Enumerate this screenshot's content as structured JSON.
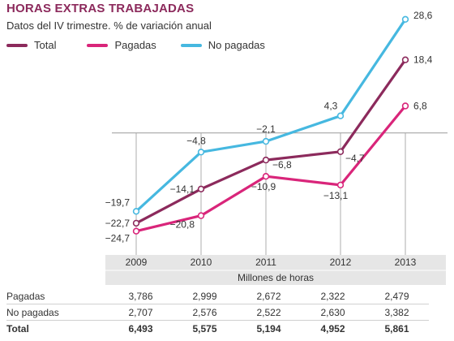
{
  "title": "HORAS EXTRAS TRABAJADAS",
  "subtitle": "Datos del IV trimestre. % de variación anual",
  "colors": {
    "total": "#8c2a5c",
    "pagadas": "#d9257a",
    "no_pagadas": "#46b8e0",
    "band": "#e6e6e6"
  },
  "chart_data": {
    "type": "line",
    "x": [
      "2009",
      "2010",
      "2011",
      "2012",
      "2013"
    ],
    "series": [
      {
        "name": "Total",
        "color": "#8c2a5c",
        "values": [
          -22.7,
          -14.1,
          -6.8,
          -4.7,
          18.4
        ],
        "labels": [
          "−22,7",
          "−14,1",
          "−6,8",
          "−4,7",
          "18,4"
        ]
      },
      {
        "name": "Pagadas",
        "color": "#d9257a",
        "values": [
          -24.7,
          -20.8,
          -10.9,
          -13.1,
          6.8
        ],
        "labels": [
          "−24,7",
          "−20,8",
          "−10,9",
          "−13,1",
          "6,8"
        ]
      },
      {
        "name": "No pagadas",
        "color": "#46b8e0",
        "values": [
          -19.7,
          -4.8,
          -2.1,
          4.3,
          28.6
        ],
        "labels": [
          "−19,7",
          "−4,8",
          "−2,1",
          "4,3",
          "28,6"
        ]
      }
    ],
    "ylim": [
      -27,
      31
    ],
    "grid": "vertical",
    "legend": "top-left"
  },
  "table": {
    "units": "Millones de horas",
    "rows": [
      {
        "label": "Pagadas",
        "values": [
          "3,786",
          "2,999",
          "2,672",
          "2,322",
          "2,479"
        ]
      },
      {
        "label": "No pagadas",
        "values": [
          "2,707",
          "2,576",
          "2,522",
          "2,630",
          "3,382"
        ]
      },
      {
        "label": "Total",
        "values": [
          "6,493",
          "5,575",
          "5,194",
          "4,952",
          "5,861"
        ]
      }
    ]
  }
}
